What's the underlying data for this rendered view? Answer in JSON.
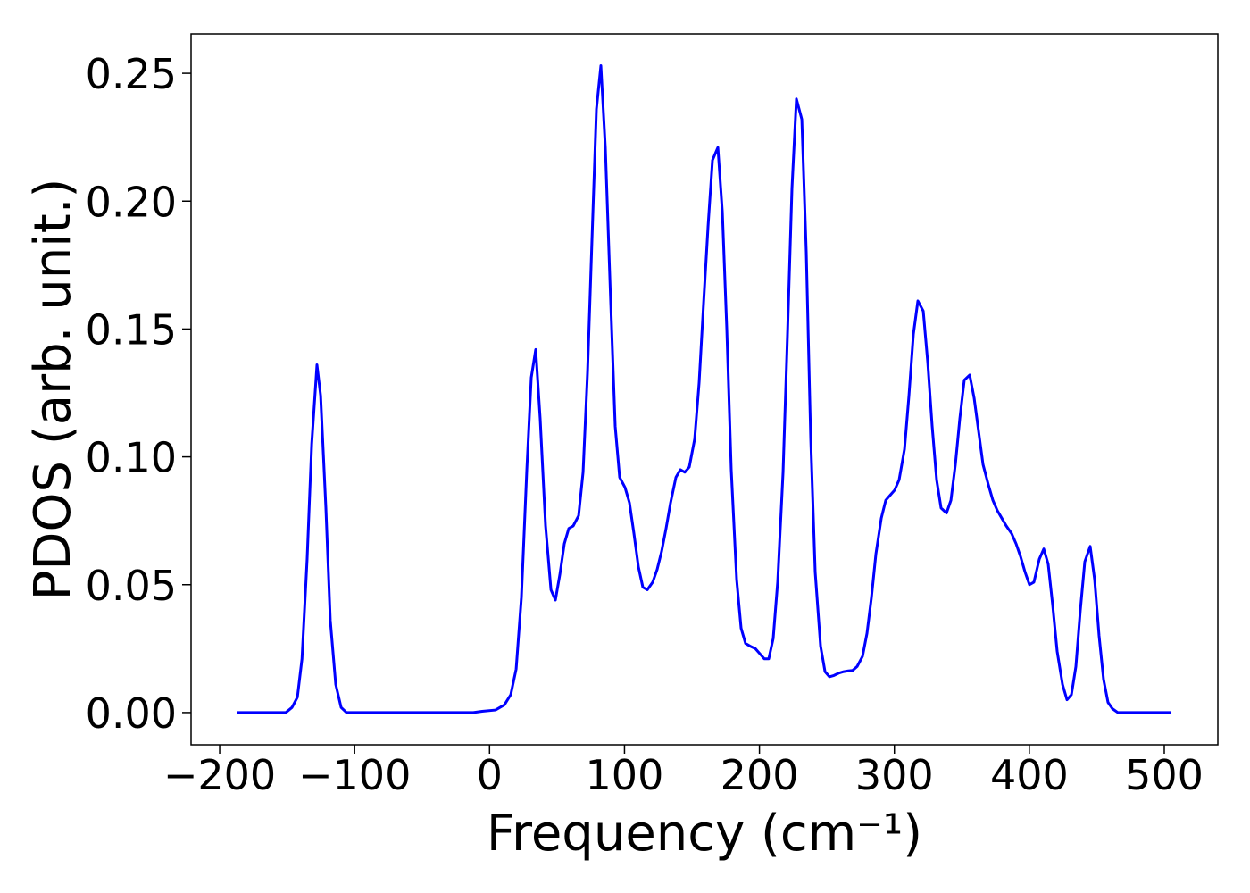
{
  "chart_data": {
    "type": "line",
    "xlabel": "Frequency (cm⁻¹)",
    "ylabel": "PDOS (arb. unit.)",
    "color": "#0000ff",
    "x": [
      -187.4,
      -151,
      -146.4,
      -142.4,
      -139,
      -135.2,
      -131.8,
      -127.9,
      -125.2,
      -121.3,
      -118,
      -114,
      -110,
      -106,
      -12,
      -5.5,
      4.4,
      11,
      15.7,
      19.7,
      23.6,
      27.6,
      30.9,
      34.2,
      37.5,
      41.5,
      45.5,
      48.8,
      52.1,
      55.4,
      58.7,
      62,
      66,
      69.3,
      72.6,
      75.9,
      79.2,
      82.5,
      85.8,
      89.8,
      93.1,
      96.4,
      100.4,
      103.7,
      107,
      110.3,
      113.6,
      116.9,
      120.9,
      124.2,
      127.5,
      130.8,
      134.1,
      138.1,
      141.4,
      144.7,
      148,
      152,
      155.3,
      158.6,
      161.9,
      165.2,
      169.2,
      172.5,
      175.8,
      179.1,
      183.1,
      186.4,
      189.7,
      193,
      197,
      200.3,
      203.6,
      206.9,
      210.2,
      213.5,
      217.5,
      220.8,
      224.1,
      227.4,
      231.4,
      234.7,
      238,
      241.3,
      245.3,
      248.6,
      251.9,
      255.2,
      259.2,
      262.5,
      265.8,
      269.1,
      272.4,
      276.4,
      279.7,
      283,
      286.3,
      290.3,
      293.6,
      296.9,
      300.2,
      303.5,
      307.5,
      310.8,
      314.1,
      317.4,
      321.4,
      324.7,
      328,
      331.3,
      334.6,
      338.6,
      341.9,
      345.2,
      348.5,
      351.8,
      355.8,
      359.1,
      362.4,
      365.7,
      369.7,
      373,
      376.3,
      379.6,
      382.9,
      386.9,
      390.2,
      393.5,
      396.8,
      400.1,
      403.4,
      407.4,
      410.7,
      414,
      417.3,
      420.6,
      424.6,
      427.9,
      431.2,
      434.5,
      437.8,
      441.1,
      445.1,
      448.4,
      451.7,
      455,
      458.3,
      461.6,
      465.6,
      505.3
    ],
    "values": [
      0,
      0,
      0.002,
      0.006,
      0.021,
      0.06,
      0.105,
      0.136,
      0.124,
      0.08,
      0.036,
      0.011,
      0.002,
      0,
      0,
      0.0005,
      0.001,
      0.003,
      0.007,
      0.017,
      0.045,
      0.095,
      0.131,
      0.142,
      0.115,
      0.073,
      0.048,
      0.044,
      0.054,
      0.066,
      0.072,
      0.073,
      0.077,
      0.094,
      0.133,
      0.185,
      0.236,
      0.253,
      0.221,
      0.16,
      0.112,
      0.092,
      0.088,
      0.082,
      0.07,
      0.057,
      0.049,
      0.048,
      0.051,
      0.056,
      0.063,
      0.072,
      0.082,
      0.092,
      0.095,
      0.094,
      0.096,
      0.107,
      0.129,
      0.16,
      0.19,
      0.216,
      0.221,
      0.196,
      0.15,
      0.095,
      0.052,
      0.033,
      0.027,
      0.026,
      0.025,
      0.023,
      0.021,
      0.021,
      0.029,
      0.051,
      0.094,
      0.148,
      0.205,
      0.24,
      0.232,
      0.18,
      0.107,
      0.055,
      0.026,
      0.016,
      0.014,
      0.0145,
      0.0155,
      0.016,
      0.0163,
      0.0165,
      0.018,
      0.022,
      0.031,
      0.045,
      0.062,
      0.076,
      0.083,
      0.085,
      0.087,
      0.091,
      0.103,
      0.124,
      0.148,
      0.161,
      0.157,
      0.137,
      0.112,
      0.091,
      0.08,
      0.078,
      0.083,
      0.097,
      0.115,
      0.13,
      0.132,
      0.123,
      0.11,
      0.097,
      0.089,
      0.083,
      0.079,
      0.076,
      0.073,
      0.07,
      0.066,
      0.061,
      0.055,
      0.05,
      0.051,
      0.06,
      0.064,
      0.058,
      0.042,
      0.024,
      0.011,
      0.005,
      0.007,
      0.018,
      0.04,
      0.059,
      0.065,
      0.052,
      0.03,
      0.013,
      0.004,
      0.0015,
      0,
      0
    ],
    "xlim": [
      -221.2,
      539.7
    ],
    "ylim": [
      -0.0126,
      0.2654
    ],
    "xticks": [
      {
        "value": -200,
        "label": "−200"
      },
      {
        "value": -100,
        "label": "−100"
      },
      0,
      100,
      200,
      300,
      400,
      500
    ],
    "yticks": [
      {
        "value": 0,
        "label": "0.00"
      },
      {
        "value": 0.05,
        "label": "0.05"
      },
      {
        "value": 0.1,
        "label": "0.10"
      },
      {
        "value": 0.15,
        "label": "0.15"
      },
      {
        "value": 0.2,
        "label": "0.20"
      },
      {
        "value": 0.25,
        "label": "0.25"
      }
    ],
    "grid": false
  }
}
